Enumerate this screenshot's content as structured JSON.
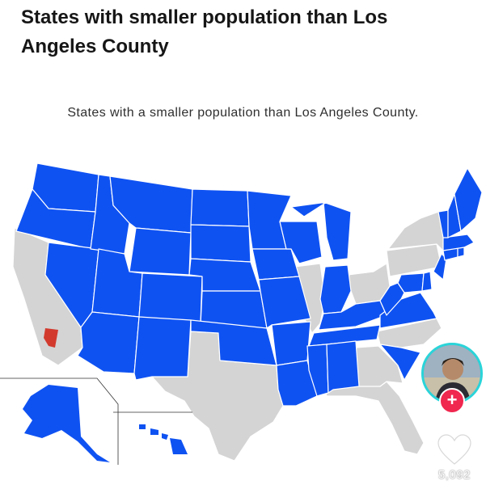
{
  "post": {
    "title": "States with smaller population than Los Angeles County"
  },
  "map": {
    "title": "States with a smaller population than Los Angeles County.",
    "colors": {
      "smaller_states": "#0f52f2",
      "larger_states": "#d4d4d4",
      "la_county": "#d23a2e",
      "borders": "#ffffff"
    },
    "states_shown_smaller": [
      "WA",
      "OR",
      "NV",
      "ID",
      "MT",
      "WY",
      "UT",
      "AZ",
      "CO",
      "NM",
      "ND",
      "SD",
      "NE",
      "KS",
      "OK",
      "MN",
      "IA",
      "MO",
      "AR",
      "LA",
      "WI",
      "MI",
      "IN",
      "KY",
      "TN",
      "MS",
      "AL",
      "SC",
      "VA",
      "WV",
      "MD",
      "DE",
      "NJ",
      "CT",
      "RI",
      "MA",
      "VT",
      "NH",
      "ME",
      "AK",
      "HI"
    ],
    "states_shown_larger": [
      "CA",
      "TX",
      "FL",
      "GA",
      "NC",
      "IL",
      "OH",
      "PA",
      "NY"
    ]
  },
  "creator": {
    "avatar": "creator-avatar",
    "follow_symbol": "+"
  },
  "likes": {
    "count": "5,092",
    "icon": "heart-icon"
  }
}
